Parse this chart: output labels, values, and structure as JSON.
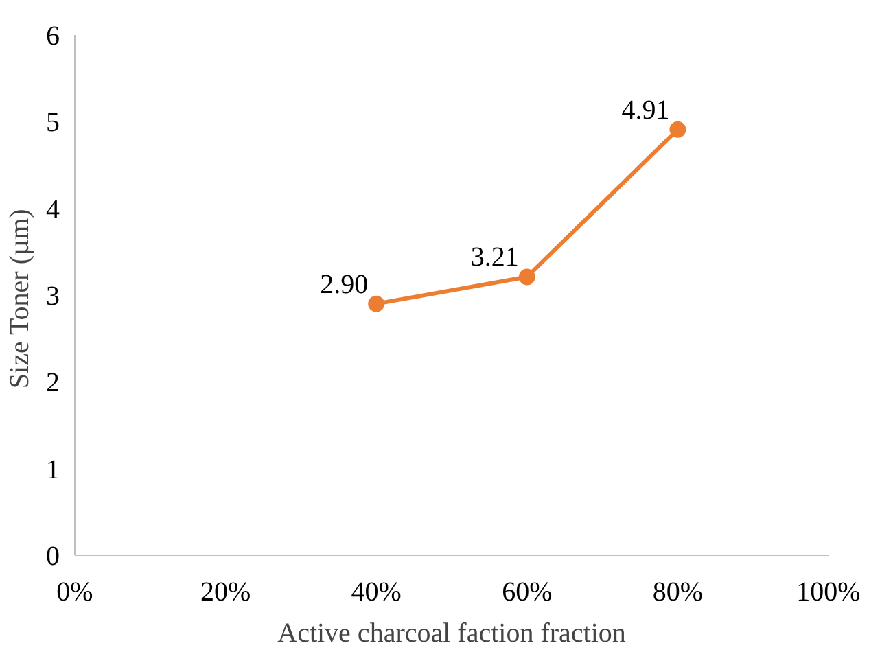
{
  "chart_data": {
    "type": "line",
    "xlabel": "Active charcoal faction fraction",
    "ylabel": "Size Toner  (µm)",
    "x": [
      40,
      60,
      80
    ],
    "series": [
      {
        "color": "#ed7d31",
        "values": [
          2.9,
          3.21,
          4.91
        ],
        "value_labels": [
          "2.90",
          "3.21",
          "4.91"
        ]
      }
    ],
    "xlim": [
      0,
      100
    ],
    "xticks": [
      {
        "value": 0,
        "label": "0%"
      },
      {
        "value": 20,
        "label": "20%"
      },
      {
        "value": 40,
        "label": "40%"
      },
      {
        "value": 60,
        "label": "60%"
      },
      {
        "value": 80,
        "label": "80%"
      },
      {
        "value": 100,
        "label": "100%"
      }
    ],
    "ylim": [
      0,
      6
    ],
    "yticks": [
      0,
      1,
      2,
      3,
      4,
      5,
      6
    ],
    "grid": false,
    "marker": "circle",
    "line_style": "solid"
  }
}
